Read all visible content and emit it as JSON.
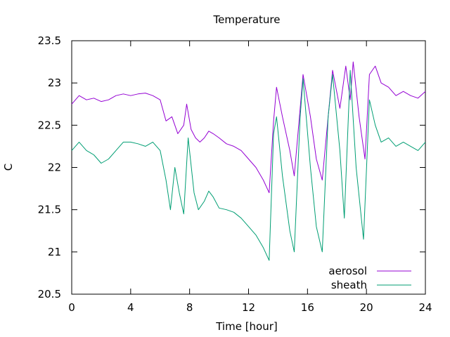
{
  "chart_data": {
    "type": "line",
    "title": "Temperature",
    "xlabel": "Time [hour]",
    "ylabel": "C",
    "xlim": [
      0,
      24
    ],
    "ylim": [
      20.5,
      23.5
    ],
    "x_ticks": [
      0,
      4,
      8,
      12,
      16,
      20,
      24
    ],
    "y_ticks": [
      20.5,
      21,
      21.5,
      22,
      22.5,
      23,
      23.5
    ],
    "x_tick_labels": [
      "0",
      "4",
      "8",
      "12",
      "16",
      "20",
      "24"
    ],
    "y_tick_labels": [
      "20.5",
      "21",
      "21.5",
      "22",
      "22.5",
      "23",
      "23.5"
    ],
    "grid": false,
    "legend": "bottom-right",
    "series": [
      {
        "name": "aerosol",
        "color": "#9400d3",
        "points": [
          [
            0,
            22.75
          ],
          [
            0.5,
            22.85
          ],
          [
            1,
            22.8
          ],
          [
            1.5,
            22.82
          ],
          [
            2,
            22.78
          ],
          [
            2.5,
            22.8
          ],
          [
            3,
            22.85
          ],
          [
            3.5,
            22.87
          ],
          [
            4,
            22.85
          ],
          [
            4.5,
            22.87
          ],
          [
            5,
            22.88
          ],
          [
            5.5,
            22.85
          ],
          [
            6,
            22.8
          ],
          [
            6.4,
            22.55
          ],
          [
            6.8,
            22.6
          ],
          [
            7.2,
            22.4
          ],
          [
            7.6,
            22.5
          ],
          [
            7.8,
            22.75
          ],
          [
            8.1,
            22.45
          ],
          [
            8.4,
            22.35
          ],
          [
            8.7,
            22.3
          ],
          [
            9,
            22.35
          ],
          [
            9.3,
            22.43
          ],
          [
            9.6,
            22.4
          ],
          [
            10,
            22.35
          ],
          [
            10.5,
            22.28
          ],
          [
            11,
            22.25
          ],
          [
            11.5,
            22.2
          ],
          [
            12,
            22.1
          ],
          [
            12.5,
            22.0
          ],
          [
            13,
            21.85
          ],
          [
            13.4,
            21.7
          ],
          [
            13.7,
            22.55
          ],
          [
            13.9,
            22.95
          ],
          [
            14.3,
            22.6
          ],
          [
            14.8,
            22.2
          ],
          [
            15.1,
            21.9
          ],
          [
            15.5,
            22.7
          ],
          [
            15.7,
            23.1
          ],
          [
            16.2,
            22.6
          ],
          [
            16.6,
            22.1
          ],
          [
            17.0,
            21.85
          ],
          [
            17.4,
            22.6
          ],
          [
            17.7,
            23.15
          ],
          [
            18.2,
            22.7
          ],
          [
            18.6,
            23.2
          ],
          [
            18.9,
            22.8
          ],
          [
            19.1,
            23.25
          ],
          [
            19.5,
            22.6
          ],
          [
            19.9,
            22.1
          ],
          [
            20.2,
            23.1
          ],
          [
            20.6,
            23.2
          ],
          [
            21,
            23.0
          ],
          [
            21.5,
            22.95
          ],
          [
            22,
            22.85
          ],
          [
            22.5,
            22.9
          ],
          [
            23,
            22.85
          ],
          [
            23.5,
            22.82
          ],
          [
            24,
            22.9
          ]
        ]
      },
      {
        "name": "sheath",
        "color": "#009e73",
        "points": [
          [
            0,
            22.2
          ],
          [
            0.5,
            22.3
          ],
          [
            1,
            22.2
          ],
          [
            1.5,
            22.15
          ],
          [
            2,
            22.05
          ],
          [
            2.5,
            22.1
          ],
          [
            3,
            22.2
          ],
          [
            3.5,
            22.3
          ],
          [
            4,
            22.3
          ],
          [
            4.5,
            22.28
          ],
          [
            5,
            22.25
          ],
          [
            5.5,
            22.3
          ],
          [
            6,
            22.2
          ],
          [
            6.4,
            21.85
          ],
          [
            6.7,
            21.5
          ],
          [
            7.0,
            22.0
          ],
          [
            7.3,
            21.7
          ],
          [
            7.6,
            21.45
          ],
          [
            7.9,
            22.35
          ],
          [
            8.3,
            21.7
          ],
          [
            8.6,
            21.5
          ],
          [
            9,
            21.6
          ],
          [
            9.3,
            21.72
          ],
          [
            9.6,
            21.65
          ],
          [
            10,
            21.52
          ],
          [
            10.5,
            21.5
          ],
          [
            11,
            21.47
          ],
          [
            11.5,
            21.4
          ],
          [
            12,
            21.3
          ],
          [
            12.5,
            21.2
          ],
          [
            13,
            21.05
          ],
          [
            13.4,
            20.9
          ],
          [
            13.7,
            22.4
          ],
          [
            13.9,
            22.6
          ],
          [
            14.3,
            21.9
          ],
          [
            14.8,
            21.25
          ],
          [
            15.1,
            21.0
          ],
          [
            15.5,
            22.6
          ],
          [
            15.7,
            23.05
          ],
          [
            16.2,
            22.0
          ],
          [
            16.6,
            21.3
          ],
          [
            17.0,
            21.0
          ],
          [
            17.4,
            22.6
          ],
          [
            17.7,
            23.1
          ],
          [
            18.2,
            22.2
          ],
          [
            18.5,
            21.4
          ],
          [
            18.9,
            23.15
          ],
          [
            19.3,
            22.0
          ],
          [
            19.8,
            21.15
          ],
          [
            20.2,
            22.8
          ],
          [
            20.6,
            22.5
          ],
          [
            21,
            22.3
          ],
          [
            21.5,
            22.35
          ],
          [
            22,
            22.25
          ],
          [
            22.5,
            22.3
          ],
          [
            23,
            22.25
          ],
          [
            23.5,
            22.2
          ],
          [
            24,
            22.3
          ]
        ]
      }
    ]
  }
}
